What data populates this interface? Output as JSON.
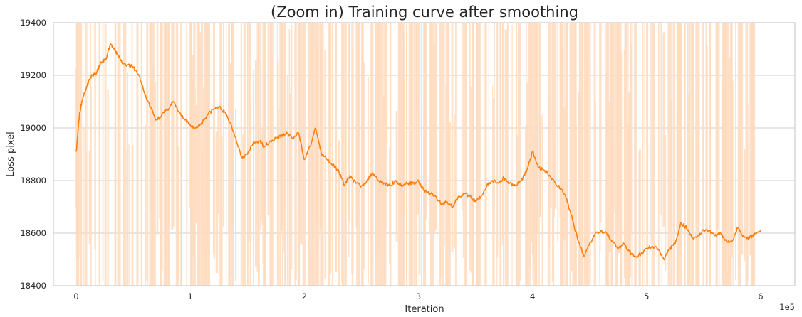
{
  "chart_data": {
    "type": "line",
    "title": "(Zoom in) Training curve after smoothing",
    "xlabel": "Iteration",
    "ylabel": "Loss pixel",
    "x_offset_label": "1e5",
    "xlim": [
      -0.2,
      6.3
    ],
    "ylim": [
      18400,
      19400
    ],
    "xticks": [
      0,
      1,
      2,
      3,
      4,
      5,
      6
    ],
    "xtick_labels": [
      "0",
      "1",
      "2",
      "3",
      "4",
      "5",
      "6"
    ],
    "yticks": [
      18400,
      18600,
      18800,
      19000,
      19200,
      19400
    ],
    "ytick_labels": [
      "18400",
      "18600",
      "18800",
      "19000",
      "19200",
      "19400"
    ],
    "grid": true,
    "legend": "none",
    "series": [
      {
        "role": "raw",
        "color": "#ffdcc0",
        "x_range": [
          0,
          6
        ],
        "note_values_range": [
          18400,
          19400
        ]
      },
      {
        "role": "smoothed",
        "color": "#ff7f0e",
        "x": [
          0,
          0.03,
          0.06,
          0.1,
          0.14,
          0.18,
          0.22,
          0.26,
          0.3,
          0.33,
          0.36,
          0.4,
          0.45,
          0.5,
          0.55,
          0.6,
          0.65,
          0.7,
          0.75,
          0.8,
          0.85,
          0.9,
          0.95,
          1.0,
          1.05,
          1.1,
          1.15,
          1.2,
          1.25,
          1.3,
          1.35,
          1.4,
          1.45,
          1.5,
          1.55,
          1.6,
          1.65,
          1.7,
          1.75,
          1.8,
          1.85,
          1.9,
          1.95,
          2.0,
          2.05,
          2.1,
          2.15,
          2.2,
          2.25,
          2.3,
          2.35,
          2.4,
          2.45,
          2.5,
          2.55,
          2.6,
          2.65,
          2.7,
          2.75,
          2.8,
          2.85,
          2.9,
          2.95,
          3.0,
          3.05,
          3.1,
          3.15,
          3.2,
          3.25,
          3.3,
          3.35,
          3.4,
          3.45,
          3.5,
          3.55,
          3.6,
          3.65,
          3.7,
          3.75,
          3.8,
          3.85,
          3.9,
          3.95,
          4.0,
          4.05,
          4.1,
          4.15,
          4.2,
          4.25,
          4.3,
          4.35,
          4.4,
          4.45,
          4.5,
          4.55,
          4.6,
          4.65,
          4.7,
          4.75,
          4.8,
          4.85,
          4.9,
          4.95,
          5.0,
          5.05,
          5.1,
          5.15,
          5.2,
          5.25,
          5.3,
          5.35,
          5.4,
          5.45,
          5.5,
          5.55,
          5.6,
          5.65,
          5.7,
          5.75,
          5.8,
          5.85,
          5.9,
          5.95,
          6.0
        ],
        "y": [
          18910,
          19060,
          19120,
          19170,
          19200,
          19210,
          19250,
          19260,
          19320,
          19300,
          19280,
          19250,
          19240,
          19230,
          19200,
          19130,
          19080,
          19030,
          19050,
          19070,
          19100,
          19060,
          19030,
          19010,
          19000,
          19020,
          19050,
          19070,
          19080,
          19060,
          19020,
          18960,
          18890,
          18900,
          18940,
          18950,
          18930,
          18950,
          18960,
          18970,
          18980,
          18960,
          18980,
          18880,
          18930,
          19000,
          18900,
          18880,
          18860,
          18840,
          18780,
          18820,
          18790,
          18780,
          18800,
          18830,
          18800,
          18790,
          18780,
          18800,
          18780,
          18790,
          18790,
          18800,
          18760,
          18750,
          18740,
          18710,
          18720,
          18700,
          18740,
          18750,
          18740,
          18720,
          18740,
          18780,
          18800,
          18790,
          18810,
          18790,
          18780,
          18800,
          18840,
          18910,
          18850,
          18840,
          18820,
          18790,
          18770,
          18730,
          18650,
          18570,
          18510,
          18560,
          18600,
          18610,
          18600,
          18570,
          18540,
          18560,
          18530,
          18510,
          18520,
          18540,
          18550,
          18540,
          18500,
          18540,
          18560,
          18640,
          18620,
          18580,
          18590,
          18610,
          18610,
          18590,
          18600,
          18570,
          18570,
          18620,
          18590,
          18580,
          18600,
          18610
        ]
      }
    ]
  }
}
